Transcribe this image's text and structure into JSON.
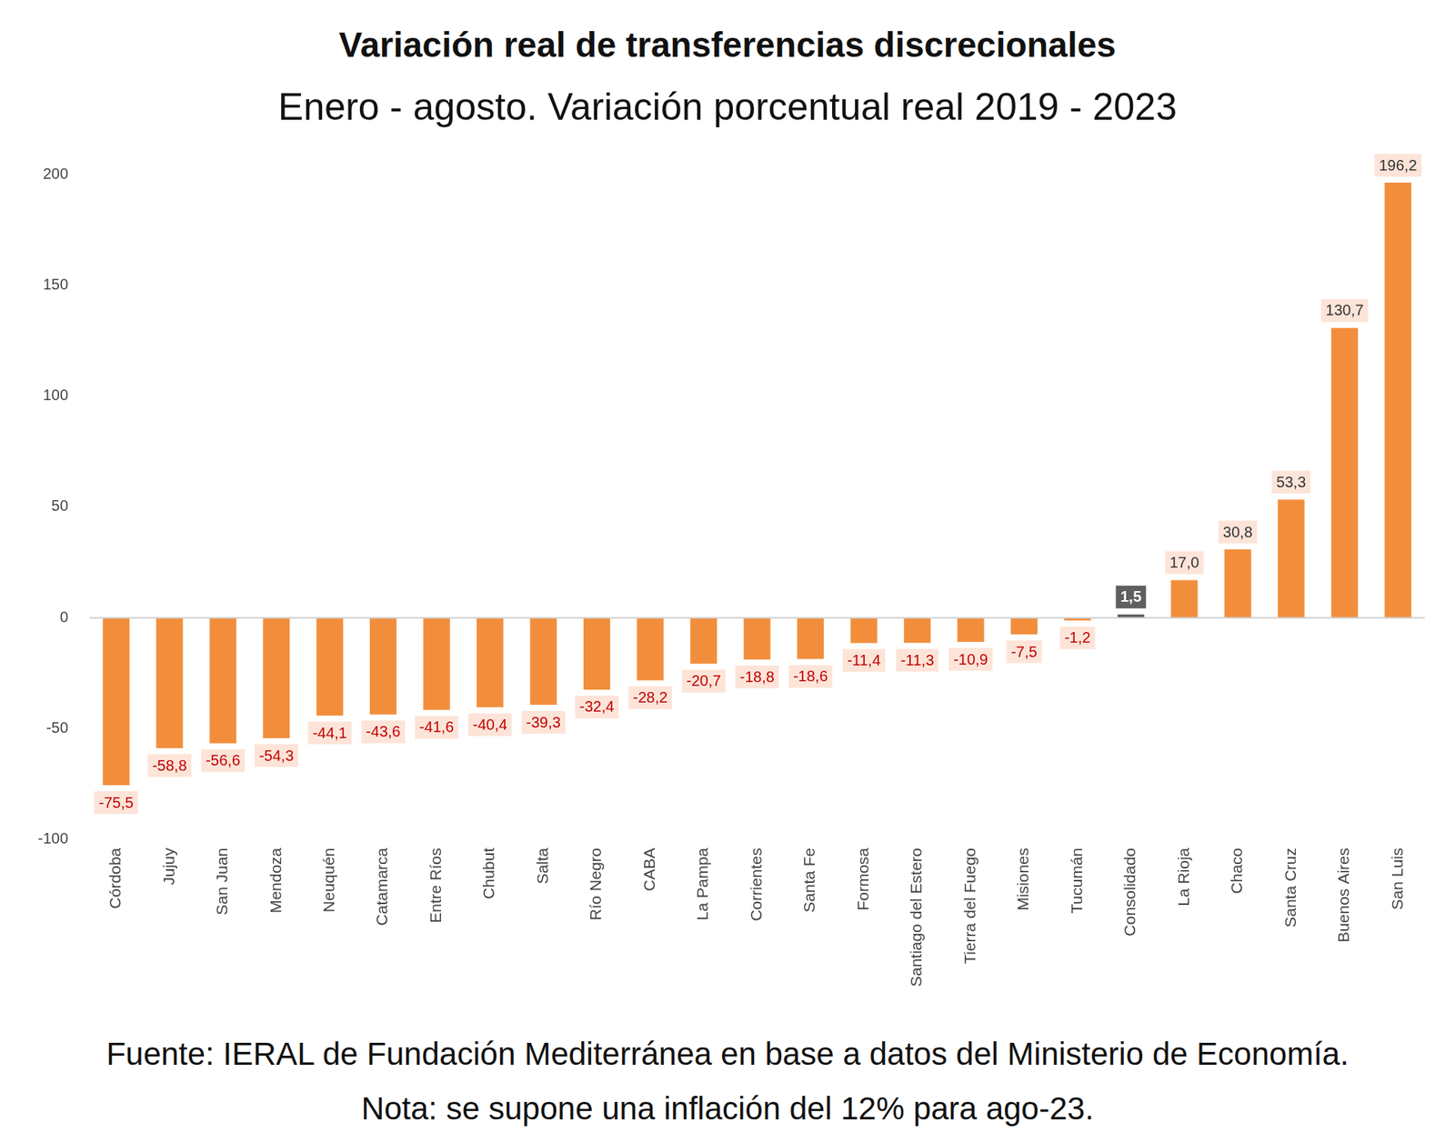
{
  "chart_data": {
    "type": "bar",
    "title": "Variación real de transferencias discrecionales",
    "subtitle": "Enero - agosto. Variación porcentual real 2019 - 2023",
    "annotations": [
      "Fuente: IERAL de Fundación Mediterránea en base a datos del Ministerio de Economía.",
      "Nota: se supone una inflación del 12% para ago-23."
    ],
    "categories": [
      "Córdoba",
      "Jujuy",
      "San Juan",
      "Mendoza",
      "Neuquén",
      "Catamarca",
      "Entre Ríos",
      "Chubut",
      "Salta",
      "Río Negro",
      "CABA",
      "La Pampa",
      "Corrientes",
      "Santa Fe",
      "Formosa",
      "Santiago del Estero",
      "Tierra del Fuego",
      "Misiones",
      "Tucumán",
      "Consolidado",
      "La Rioja",
      "Chaco",
      "Santa Cruz",
      "Buenos Aires",
      "San Luis"
    ],
    "values": [
      -75.5,
      -58.8,
      -56.6,
      -54.3,
      -44.1,
      -43.6,
      -41.6,
      -40.4,
      -39.3,
      -32.4,
      -28.2,
      -20.7,
      -18.8,
      -18.6,
      -11.4,
      -11.3,
      -10.9,
      -7.5,
      -1.2,
      1.5,
      17.0,
      30.8,
      53.3,
      130.7,
      196.2
    ],
    "value_labels": [
      "-75,5",
      "-58,8",
      "-56,6",
      "-54,3",
      "-44,1",
      "-43,6",
      "-41,6",
      "-40,4",
      "-39,3",
      "-32,4",
      "-28,2",
      "-20,7",
      "-18,8",
      "-18,6",
      "-11,4",
      "-11,3",
      "-10,9",
      "-7,5",
      "-1,2",
      "1,5",
      "17,0",
      "30,8",
      "53,3",
      "130,7",
      "196,2"
    ],
    "colors": [
      "#f28e3b",
      "#f28e3b",
      "#f28e3b",
      "#f28e3b",
      "#f28e3b",
      "#f28e3b",
      "#f28e3b",
      "#f28e3b",
      "#f28e3b",
      "#f28e3b",
      "#f28e3b",
      "#f28e3b",
      "#f28e3b",
      "#f28e3b",
      "#f28e3b",
      "#f28e3b",
      "#f28e3b",
      "#f28e3b",
      "#f28e3b",
      "#5f5f5f",
      "#f28e3b",
      "#f28e3b",
      "#f28e3b",
      "#f28e3b",
      "#f28e3b"
    ],
    "ylim": [
      -100,
      200
    ],
    "yticks": [
      -100,
      -50,
      0,
      50,
      100,
      150,
      200
    ],
    "grid": false,
    "data_labels": true
  }
}
